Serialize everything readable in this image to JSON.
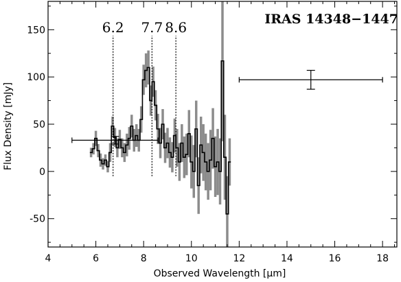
{
  "chart_data": {
    "type": "line",
    "title": "IRAS 14348−1447",
    "xlabel": "Observed Wavelength [μm]",
    "ylabel": "Flux Density [mJy]",
    "xlim": [
      4,
      18.6
    ],
    "ylim": [
      -80,
      180
    ],
    "xticks": [
      4,
      6,
      8,
      10,
      12,
      14,
      16,
      18
    ],
    "yticks": [
      -50,
      0,
      50,
      100,
      150
    ],
    "grid": false,
    "series": [
      {
        "x": [
          5.8,
          5.9,
          6.0,
          6.1,
          6.2,
          6.3,
          6.4,
          6.5,
          6.6,
          6.7,
          6.8,
          6.9,
          7.0,
          7.1,
          7.2,
          7.3,
          7.4,
          7.5,
          7.6,
          7.7,
          7.8,
          7.9,
          8.0,
          8.1,
          8.2,
          8.3,
          8.4,
          8.5,
          8.6,
          8.7,
          8.8,
          8.9,
          9.0,
          9.1,
          9.2,
          9.3,
          9.4,
          9.5,
          9.6,
          9.7,
          9.8,
          9.9,
          10.0,
          10.1,
          10.2,
          10.3,
          10.4,
          10.5,
          10.6,
          10.7,
          10.8,
          10.9,
          11.0,
          11.1,
          11.2,
          11.3,
          11.4,
          11.5,
          11.6
        ],
        "values": [
          20,
          24,
          35,
          22,
          12,
          8,
          12,
          5,
          20,
          48,
          36,
          25,
          34,
          25,
          20,
          28,
          35,
          48,
          33,
          38,
          33,
          55,
          97,
          107,
          110,
          75,
          95,
          70,
          45,
          30,
          50,
          25,
          30,
          20,
          15,
          38,
          25,
          10,
          30,
          15,
          18,
          40,
          10,
          0,
          45,
          -15,
          28,
          20,
          10,
          0,
          12,
          35,
          5,
          10,
          0,
          117,
          15,
          -45,
          10
        ],
        "errors": [
          5,
          6,
          8,
          7,
          7,
          6,
          6,
          6,
          10,
          10,
          10,
          10,
          10,
          10,
          10,
          12,
          12,
          12,
          12,
          12,
          12,
          14,
          16,
          18,
          18,
          16,
          16,
          16,
          16,
          16,
          16,
          16,
          16,
          16,
          16,
          18,
          20,
          20,
          20,
          22,
          22,
          25,
          28,
          28,
          30,
          30,
          30,
          30,
          30,
          30,
          32,
          32,
          32,
          35,
          35,
          85,
          45,
          40,
          25
        ]
      }
    ],
    "feature_lines": [
      {
        "label": "6.2",
        "x": 6.72
      },
      {
        "label": "7.7",
        "x": 8.35
      },
      {
        "label": "8.6",
        "x": 9.35
      }
    ],
    "error_crosses": [
      {
        "x": 6.8,
        "y": 33,
        "x_min": 5.0,
        "x_max": 8.6,
        "y_err": 4
      },
      {
        "x": 15.0,
        "y": 97,
        "x_min": 12.0,
        "x_max": 18.0,
        "y_err": 10
      }
    ]
  }
}
